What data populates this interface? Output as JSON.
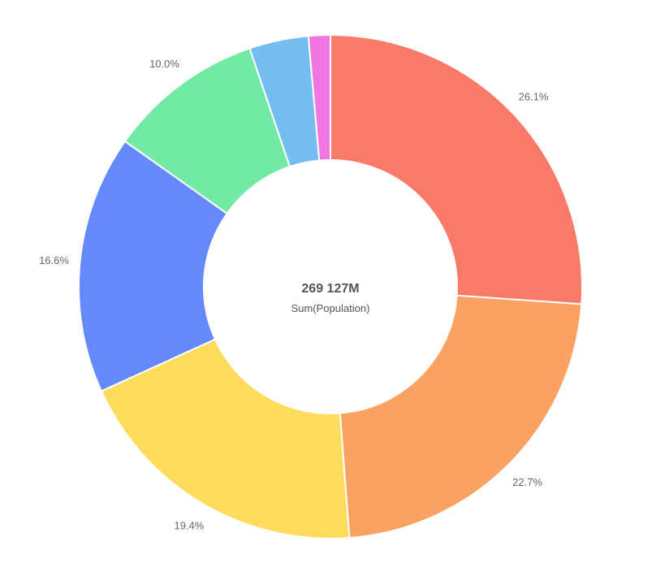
{
  "chart_data": {
    "type": "pie",
    "variant": "donut",
    "center": {
      "value": "269 127M",
      "caption": "Sum(Population)"
    },
    "slices": [
      {
        "value": 26.1,
        "label": "26.1%",
        "color": "#fa7968"
      },
      {
        "value": 22.7,
        "label": "22.7%",
        "color": "#f9a262"
      },
      {
        "value": 19.4,
        "label": "19.4%",
        "color": "#fedc5b"
      },
      {
        "value": 16.6,
        "label": "16.6%",
        "color": "#6389fa"
      },
      {
        "value": 10.0,
        "label": "10.0%",
        "color": "#72eaa5"
      },
      {
        "value": 3.8,
        "label": "",
        "color": "#73bdef"
      },
      {
        "value": 1.4,
        "label": "",
        "color": "#f077e2"
      }
    ],
    "start_angle": "top (12 o'clock)",
    "direction": "clockwise",
    "legend": "none"
  }
}
